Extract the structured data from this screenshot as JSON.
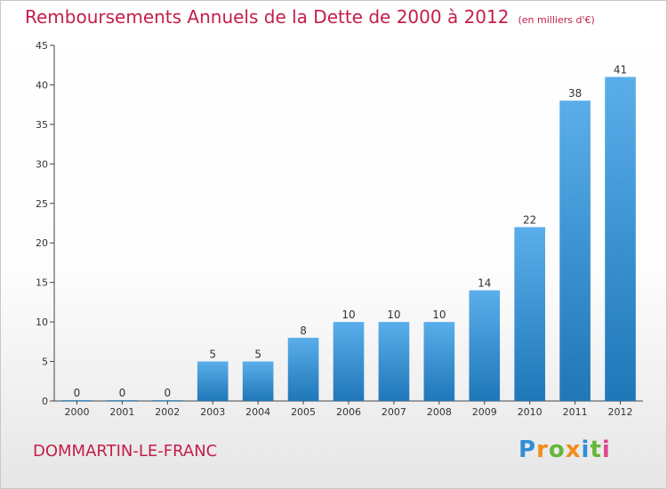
{
  "title": "Remboursements Annuels de la Dette de 2000 à 2012",
  "unit": "(en milliers d'€)",
  "commune": "DOMMARTIN-LE-FRANC",
  "logo": {
    "letters": [
      "P",
      "r",
      "o",
      "x",
      "i",
      "t",
      "i"
    ],
    "colors": [
      "#2f8fd6",
      "#f28c1b",
      "#66b63a",
      "#f28c1b",
      "#2f8fd6",
      "#66b63a",
      "#e0478a"
    ]
  },
  "chart_data": {
    "type": "bar",
    "categories": [
      "2000",
      "2001",
      "2002",
      "2003",
      "2004",
      "2005",
      "2006",
      "2007",
      "2008",
      "2009",
      "2010",
      "2011",
      "2012"
    ],
    "values": [
      0,
      0,
      0,
      5,
      5,
      8,
      10,
      10,
      10,
      14,
      22,
      38,
      41
    ],
    "ylim": [
      0,
      45
    ],
    "yticks": [
      0,
      5,
      10,
      15,
      20,
      25,
      30,
      35,
      40,
      45
    ],
    "grid": false,
    "bar_color_top": "#5aaeea",
    "bar_color_bottom": "#1f77b8"
  }
}
